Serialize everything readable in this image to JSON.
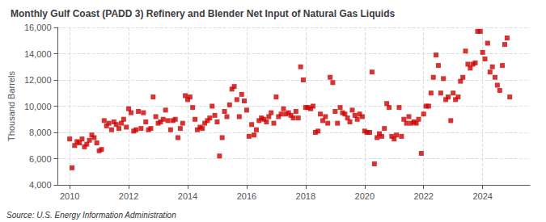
{
  "chart_data": {
    "type": "scatter",
    "title": "Monthly Gulf Coast (PADD 3) Refinery and Blender Net Input of Natural Gas Liquids",
    "ylabel": "Thousand Barrels",
    "annotations": [
      "Source: U.S. Energy Information Administration"
    ],
    "color": "#cc0000",
    "marker": "square",
    "grid": true,
    "xlim": [
      2009.6,
      2025.6
    ],
    "xticks": [
      2010,
      2012,
      2014,
      2016,
      2018,
      2020,
      2022,
      2024
    ],
    "ylim": [
      4000,
      16000
    ],
    "yticks": [
      {
        "value": 4000,
        "label": "4,000"
      },
      {
        "value": 6000,
        "label": "6,000"
      },
      {
        "value": 8000,
        "label": "8,000"
      },
      {
        "value": 10000,
        "label": "10,000"
      },
      {
        "value": 12000,
        "label": "12,000"
      },
      {
        "value": 14000,
        "label": "14,000"
      },
      {
        "value": 16000,
        "label": "16,000"
      }
    ],
    "x": [
      2010.0,
      2010.08,
      2010.17,
      2010.25,
      2010.33,
      2010.42,
      2010.5,
      2010.58,
      2010.67,
      2010.75,
      2010.83,
      2010.92,
      2011.0,
      2011.08,
      2011.17,
      2011.25,
      2011.33,
      2011.42,
      2011.5,
      2011.58,
      2011.67,
      2011.75,
      2011.83,
      2011.92,
      2012.0,
      2012.08,
      2012.17,
      2012.25,
      2012.33,
      2012.42,
      2012.5,
      2012.58,
      2012.67,
      2012.75,
      2012.83,
      2012.92,
      2013.0,
      2013.08,
      2013.17,
      2013.25,
      2013.33,
      2013.42,
      2013.5,
      2013.58,
      2013.67,
      2013.75,
      2013.83,
      2013.92,
      2014.0,
      2014.08,
      2014.17,
      2014.25,
      2014.33,
      2014.42,
      2014.5,
      2014.58,
      2014.67,
      2014.75,
      2014.83,
      2014.92,
      2015.0,
      2015.08,
      2015.17,
      2015.25,
      2015.33,
      2015.42,
      2015.5,
      2015.58,
      2015.67,
      2015.75,
      2015.83,
      2015.92,
      2016.0,
      2016.08,
      2016.17,
      2016.25,
      2016.33,
      2016.42,
      2016.5,
      2016.58,
      2016.67,
      2016.75,
      2016.83,
      2016.92,
      2017.0,
      2017.08,
      2017.17,
      2017.25,
      2017.33,
      2017.42,
      2017.5,
      2017.58,
      2017.67,
      2017.75,
      2017.83,
      2017.92,
      2018.0,
      2018.08,
      2018.17,
      2018.25,
      2018.33,
      2018.42,
      2018.5,
      2018.58,
      2018.67,
      2018.75,
      2018.83,
      2018.92,
      2019.0,
      2019.08,
      2019.17,
      2019.25,
      2019.33,
      2019.42,
      2019.5,
      2019.58,
      2019.67,
      2019.75,
      2019.83,
      2019.92,
      2020.0,
      2020.08,
      2020.17,
      2020.25,
      2020.33,
      2020.42,
      2020.5,
      2020.58,
      2020.67,
      2020.75,
      2020.83,
      2020.92,
      2021.0,
      2021.08,
      2021.17,
      2021.25,
      2021.33,
      2021.42,
      2021.5,
      2021.58,
      2021.67,
      2021.75,
      2021.83,
      2021.92,
      2022.0,
      2022.08,
      2022.17,
      2022.25,
      2022.33,
      2022.42,
      2022.5,
      2022.58,
      2022.67,
      2022.75,
      2022.83,
      2022.92,
      2023.0,
      2023.08,
      2023.17,
      2023.25,
      2023.33,
      2023.42,
      2023.5,
      2023.58,
      2023.67,
      2023.75,
      2023.83,
      2023.92,
      2024.0,
      2024.08,
      2024.17,
      2024.25,
      2024.33,
      2024.42,
      2024.5,
      2024.58,
      2024.67,
      2024.75,
      2024.83,
      2024.92
    ],
    "values": [
      7500,
      5300,
      7000,
      7300,
      7200,
      7500,
      6900,
      7100,
      7400,
      7800,
      7600,
      7200,
      6600,
      6700,
      8900,
      8500,
      8700,
      8200,
      8800,
      8600,
      8300,
      8700,
      9000,
      8400,
      9800,
      9500,
      8100,
      8200,
      9600,
      8300,
      9500,
      8800,
      8200,
      8300,
      10700,
      9200,
      8700,
      8800,
      9000,
      9700,
      8900,
      8200,
      8900,
      9000,
      7600,
      8300,
      8700,
      10800,
      10500,
      10700,
      9900,
      9000,
      8200,
      8400,
      8300,
      8700,
      8900,
      9100,
      10000,
      9300,
      8800,
      6200,
      7600,
      9600,
      9200,
      10100,
      11300,
      11500,
      10500,
      9200,
      10900,
      10400,
      9700,
      7700,
      8600,
      7800,
      8200,
      8900,
      9100,
      9000,
      8800,
      9200,
      9500,
      8700,
      10700,
      9200,
      9400,
      9800,
      9400,
      9500,
      9300,
      9100,
      9600,
      9100,
      13000,
      12000,
      9900,
      9900,
      9800,
      10000,
      8000,
      8100,
      9400,
      8900,
      9200,
      8700,
      12200,
      11800,
      9600,
      8700,
      9900,
      9500,
      9400,
      9100,
      8800,
      9700,
      9300,
      9000,
      9400,
      9200,
      8100,
      8000,
      8000,
      12600,
      5600,
      7600,
      7900,
      7700,
      8300,
      10200,
      9900,
      7700,
      7500,
      7800,
      9900,
      7700,
      9000,
      8700,
      9200,
      8700,
      8800,
      8700,
      9000,
      6400,
      9400,
      10000,
      10000,
      11000,
      12200,
      13900,
      13100,
      11000,
      12100,
      10500,
      10700,
      8900,
      11000,
      10500,
      10700,
      11900,
      12200,
      14200,
      13200,
      12900,
      13200,
      13300,
      15700,
      15700,
      14100,
      13600,
      14800,
      12600,
      13000,
      12200,
      11600,
      11200,
      13100,
      14700,
      15200,
      10700
    ]
  }
}
